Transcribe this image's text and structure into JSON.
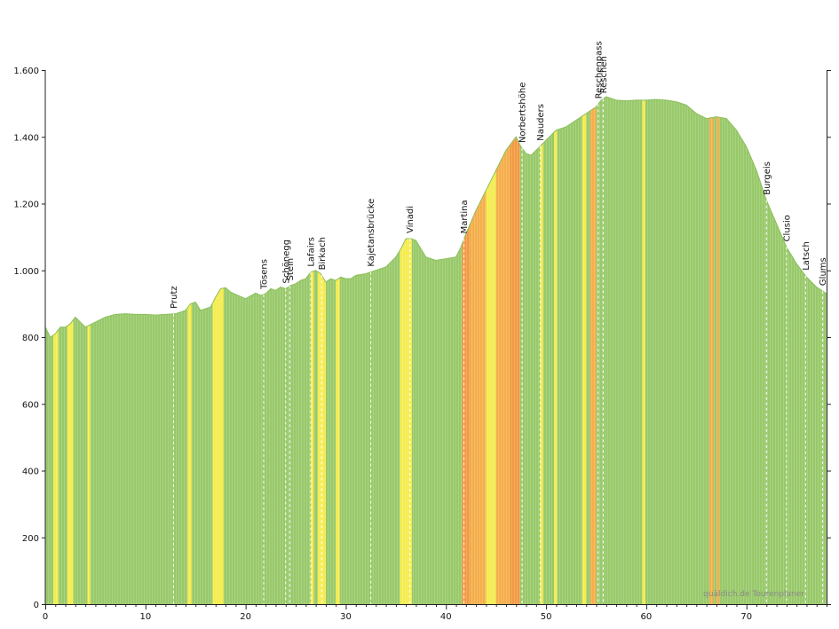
{
  "chart_data": {
    "type": "area",
    "xlim": [
      0,
      78
    ],
    "ylim": [
      0,
      1600
    ],
    "x_ticks": [
      0,
      10,
      20,
      30,
      40,
      50,
      60,
      70
    ],
    "y_ticks": [
      0,
      200,
      400,
      600,
      800,
      1000,
      1200,
      1400,
      1600
    ],
    "x_tick_labels": [
      "0",
      "10",
      "20",
      "30",
      "40",
      "50",
      "60",
      "70"
    ],
    "y_tick_labels": [
      "0",
      "200",
      "400",
      "600",
      "800",
      "1.000",
      "1.200",
      "1.400",
      "1.600"
    ],
    "elevation_profile": {
      "x": [
        0,
        0.5,
        1,
        1.5,
        2,
        2.5,
        3,
        3.5,
        4,
        5,
        6,
        7,
        8,
        9,
        10,
        11,
        12,
        13,
        14,
        14.5,
        15,
        15.5,
        16,
        16.5,
        17,
        17.5,
        18,
        18.5,
        19,
        20,
        21,
        21.5,
        22,
        22.5,
        23,
        23.5,
        24,
        24.5,
        25,
        25.5,
        26,
        26.5,
        27,
        27.5,
        28,
        28.5,
        29,
        29.5,
        30,
        30.5,
        31,
        32,
        33,
        34,
        35,
        35.5,
        36,
        36.5,
        37,
        38,
        38.5,
        39,
        40,
        41,
        41.5,
        42,
        43,
        44,
        45,
        46,
        47,
        47.5,
        48,
        48.5,
        49,
        50,
        51,
        52,
        53,
        54,
        55,
        55.5,
        56,
        57,
        58,
        59,
        60,
        61,
        62,
        63,
        64,
        65,
        66,
        67,
        68,
        69,
        70,
        71,
        72,
        73,
        74,
        75,
        76,
        77,
        78
      ],
      "y": [
        830,
        800,
        810,
        830,
        830,
        840,
        860,
        845,
        830,
        845,
        860,
        868,
        870,
        868,
        868,
        866,
        868,
        870,
        880,
        900,
        905,
        880,
        885,
        890,
        920,
        945,
        948,
        935,
        928,
        915,
        932,
        925,
        930,
        945,
        940,
        950,
        945,
        955,
        960,
        970,
        975,
        995,
        1000,
        990,
        965,
        975,
        970,
        980,
        975,
        975,
        985,
        990,
        1000,
        1010,
        1040,
        1065,
        1095,
        1095,
        1090,
        1040,
        1035,
        1030,
        1035,
        1040,
        1070,
        1110,
        1180,
        1240,
        1300,
        1360,
        1400,
        1370,
        1350,
        1345,
        1360,
        1390,
        1420,
        1430,
        1450,
        1470,
        1490,
        1510,
        1520,
        1510,
        1508,
        1510,
        1510,
        1512,
        1510,
        1505,
        1495,
        1470,
        1455,
        1460,
        1455,
        1420,
        1370,
        1300,
        1210,
        1140,
        1070,
        1020,
        980,
        950,
        930
      ]
    },
    "grade_colors": {
      "low": "#98c96a",
      "mid": "#f5ec4f",
      "high": "#f5ae4a",
      "steep": "#f29a42"
    },
    "steep_sections": [
      {
        "from": 0.8,
        "to": 1.3,
        "level": "mid"
      },
      {
        "from": 2.2,
        "to": 2.8,
        "level": "mid"
      },
      {
        "from": 4.2,
        "to": 4.5,
        "level": "mid"
      },
      {
        "from": 14.2,
        "to": 14.6,
        "level": "mid"
      },
      {
        "from": 16.7,
        "to": 17.8,
        "level": "mid"
      },
      {
        "from": 26.5,
        "to": 26.8,
        "level": "mid"
      },
      {
        "from": 27.2,
        "to": 28.0,
        "level": "mid"
      },
      {
        "from": 29.0,
        "to": 29.4,
        "level": "mid"
      },
      {
        "from": 35.4,
        "to": 36.6,
        "level": "mid"
      },
      {
        "from": 41.6,
        "to": 42.4,
        "level": "steep"
      },
      {
        "from": 42.4,
        "to": 44.0,
        "level": "high"
      },
      {
        "from": 44.0,
        "to": 45.0,
        "level": "mid"
      },
      {
        "from": 45.0,
        "to": 46.4,
        "level": "high"
      },
      {
        "from": 46.4,
        "to": 47.4,
        "level": "steep"
      },
      {
        "from": 49.4,
        "to": 49.7,
        "level": "mid"
      },
      {
        "from": 50.8,
        "to": 51.1,
        "level": "mid"
      },
      {
        "from": 53.6,
        "to": 54.0,
        "level": "mid"
      },
      {
        "from": 54.4,
        "to": 55.0,
        "level": "high"
      },
      {
        "from": 59.6,
        "to": 59.9,
        "level": "mid"
      },
      {
        "from": 66.3,
        "to": 66.7,
        "level": "high"
      },
      {
        "from": 67.0,
        "to": 67.3,
        "level": "high"
      }
    ],
    "places": [
      {
        "name": "Prutz",
        "x": 12.8
      },
      {
        "name": "Tösens",
        "x": 21.8
      },
      {
        "name": "Schönegg",
        "x": 24.0
      },
      {
        "name": "Stein",
        "x": 24.4
      },
      {
        "name": "Lafairs",
        "x": 26.5
      },
      {
        "name": "Birkach",
        "x": 27.6
      },
      {
        "name": "Kajetansbrücke",
        "x": 32.5
      },
      {
        "name": "Vinadi",
        "x": 36.4
      },
      {
        "name": "Martina",
        "x": 41.8
      },
      {
        "name": "Norbertshöhe",
        "x": 47.6
      },
      {
        "name": "Nauders",
        "x": 49.4
      },
      {
        "name": "Reschenpass",
        "x": 55.2
      },
      {
        "name": "Reschen",
        "x": 55.7
      },
      {
        "name": "Burgeis",
        "x": 72.0
      },
      {
        "name": "Clusio",
        "x": 74.0
      },
      {
        "name": "Latsch",
        "x": 75.9
      },
      {
        "name": "Glums",
        "x": 77.6
      }
    ],
    "watermark": "quäldich.de Tourenplaner"
  }
}
